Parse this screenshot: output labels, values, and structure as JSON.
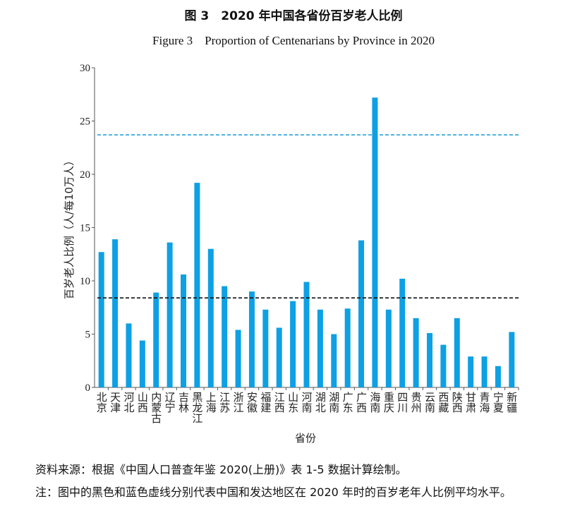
{
  "title_cn": "图 3　2020 年中国各省份百岁老人比例",
  "title_en": "Figure 3　Proportion of Centenarians by Province in 2020",
  "source_note": "资料来源：根据《中国人口普查年鉴 2020(上册)》表 1-5 数据计算绘制。",
  "footnote": "注：图中的黑色和蓝色虚线分别代表中国和发达地区在 2020 年时的百岁老年人比例平均水平。",
  "chart_data": {
    "type": "bar",
    "xlabel": "省份",
    "ylabel": "百岁老人比例（人/每10万人）",
    "ylim": [
      0,
      30
    ],
    "yticks": [
      0,
      5,
      10,
      15,
      20,
      25,
      30
    ],
    "categories": [
      "北京",
      "天津",
      "河北",
      "山西",
      "内蒙古",
      "辽宁",
      "吉林",
      "黑龙江",
      "上海",
      "江苏",
      "浙江",
      "安徽",
      "福建",
      "江西",
      "山东",
      "河南",
      "湖北",
      "湖南",
      "广东",
      "广西",
      "海南",
      "重庆",
      "四川",
      "贵州",
      "云南",
      "西藏",
      "陕西",
      "甘肃",
      "青海",
      "宁夏",
      "新疆"
    ],
    "values": [
      12.7,
      13.9,
      6.0,
      4.4,
      8.9,
      13.6,
      10.6,
      19.2,
      13.0,
      9.5,
      5.4,
      9.0,
      7.3,
      5.6,
      8.1,
      9.9,
      7.3,
      5.0,
      7.4,
      13.8,
      27.2,
      7.3,
      10.2,
      6.5,
      5.1,
      4.0,
      6.5,
      2.9,
      2.9,
      2.0,
      5.2
    ],
    "reference_lines": [
      {
        "name": "China average",
        "value": 8.4,
        "color": "#111111",
        "style": "dashed"
      },
      {
        "name": "Developed regions average",
        "value": 23.7,
        "color": "#1a9ad6",
        "style": "dashed"
      }
    ],
    "bar_color": "#0ea0e4",
    "grid": false
  }
}
